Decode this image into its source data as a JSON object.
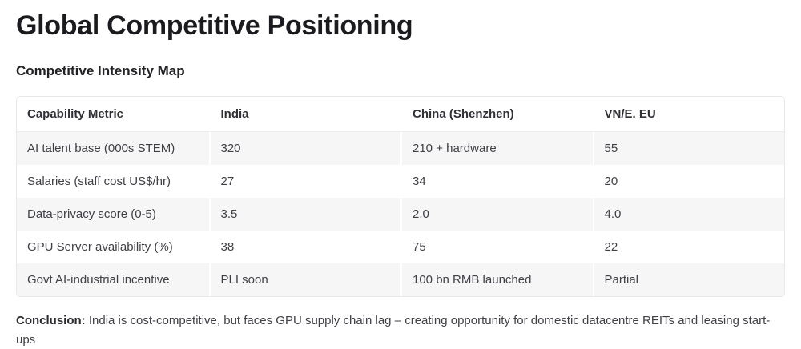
{
  "page": {
    "title": "Global Competitive Positioning",
    "subtitle": "Competitive Intensity Map",
    "conclusion": {
      "label": "Conclusion:",
      "text": " India is cost-competitive, but faces GPU supply chain lag – creating opportunity for domestic datacentre REITs and leasing start-ups"
    }
  },
  "table": {
    "columns": [
      "Capability Metric",
      "India",
      "China (Shenzhen)",
      "VN/E. EU"
    ],
    "rows": [
      [
        "AI talent base (000s STEM)",
        "320",
        "210 + hardware",
        "55"
      ],
      [
        "Salaries (staff cost US$/hr)",
        "27",
        "34",
        "20"
      ],
      [
        "Data-privacy score (0-5)",
        "3.5",
        "2.0",
        "4.0"
      ],
      [
        "GPU Server availability (%)",
        "38",
        "75",
        "22"
      ],
      [
        "Govt AI-industrial incentive",
        "PLI soon",
        "100 bn RMB launched",
        "Partial"
      ]
    ]
  },
  "colors": {
    "stripe": "#f6f6f7",
    "table_border": "#e8e8ea",
    "body_text": "#3f3f46",
    "heading_text": "#1b1b1f"
  }
}
